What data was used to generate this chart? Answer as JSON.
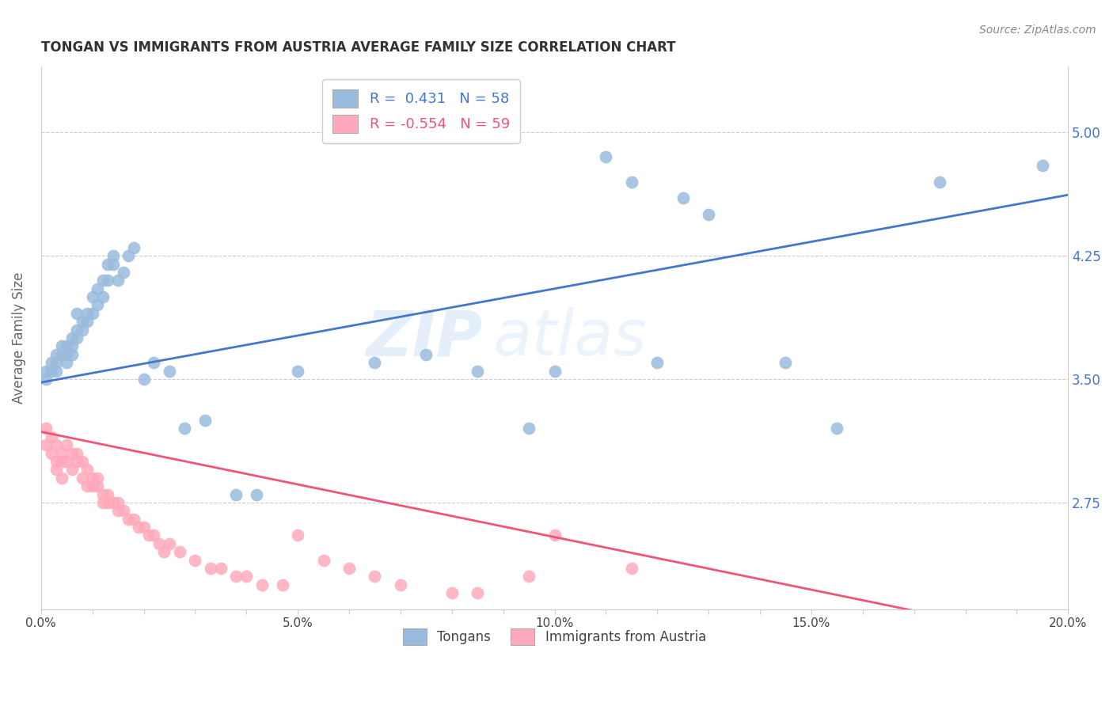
{
  "title": "TONGAN VS IMMIGRANTS FROM AUSTRIA AVERAGE FAMILY SIZE CORRELATION CHART",
  "source": "Source: ZipAtlas.com",
  "ylabel": "Average Family Size",
  "xlim": [
    0.0,
    0.2
  ],
  "ylim": [
    2.1,
    5.4
  ],
  "right_yticks": [
    2.75,
    3.5,
    4.25,
    5.0
  ],
  "xtick_labels": [
    "0.0%",
    "",
    "",
    "",
    "",
    "5.0%",
    "",
    "",
    "",
    "",
    "10.0%",
    "",
    "",
    "",
    "",
    "15.0%",
    "",
    "",
    "",
    "",
    "20.0%"
  ],
  "xtick_values": [
    0.0,
    0.01,
    0.02,
    0.03,
    0.04,
    0.05,
    0.06,
    0.07,
    0.08,
    0.09,
    0.1,
    0.11,
    0.12,
    0.13,
    0.14,
    0.15,
    0.16,
    0.17,
    0.18,
    0.19,
    0.2
  ],
  "blue_color": "#99BBDD",
  "pink_color": "#FFAABB",
  "blue_line_color": "#4477CC",
  "pink_line_color": "#EE5577",
  "legend_blue_r": "0.431",
  "legend_blue_n": "58",
  "legend_pink_r": "-0.554",
  "legend_pink_n": "59",
  "legend_label_blue": "Tongans",
  "legend_label_pink": "Immigrants from Austria",
  "watermark_zip": "ZIP",
  "watermark_atlas": "atlas",
  "blue_scatter_x": [
    0.001,
    0.001,
    0.002,
    0.002,
    0.003,
    0.003,
    0.003,
    0.004,
    0.004,
    0.005,
    0.005,
    0.005,
    0.006,
    0.006,
    0.006,
    0.007,
    0.007,
    0.007,
    0.008,
    0.008,
    0.009,
    0.009,
    0.01,
    0.01,
    0.011,
    0.011,
    0.012,
    0.012,
    0.013,
    0.013,
    0.014,
    0.014,
    0.015,
    0.016,
    0.017,
    0.018,
    0.02,
    0.022,
    0.025,
    0.028,
    0.032,
    0.038,
    0.042,
    0.05,
    0.065,
    0.075,
    0.085,
    0.095,
    0.1,
    0.11,
    0.115,
    0.12,
    0.125,
    0.13,
    0.145,
    0.155,
    0.175,
    0.195
  ],
  "blue_scatter_y": [
    3.5,
    3.55,
    3.55,
    3.6,
    3.55,
    3.65,
    3.6,
    3.7,
    3.65,
    3.6,
    3.65,
    3.7,
    3.7,
    3.65,
    3.75,
    3.8,
    3.75,
    3.9,
    3.8,
    3.85,
    3.85,
    3.9,
    3.9,
    4.0,
    3.95,
    4.05,
    4.0,
    4.1,
    4.1,
    4.2,
    4.2,
    4.25,
    4.1,
    4.15,
    4.25,
    4.3,
    3.5,
    3.6,
    3.55,
    3.2,
    3.25,
    2.8,
    2.8,
    3.55,
    3.6,
    3.65,
    3.55,
    3.2,
    3.55,
    4.85,
    4.7,
    3.6,
    4.6,
    4.5,
    3.6,
    3.2,
    4.7,
    4.8
  ],
  "pink_scatter_x": [
    0.001,
    0.001,
    0.002,
    0.002,
    0.003,
    0.003,
    0.003,
    0.004,
    0.004,
    0.004,
    0.005,
    0.005,
    0.006,
    0.006,
    0.007,
    0.007,
    0.008,
    0.008,
    0.009,
    0.009,
    0.01,
    0.01,
    0.011,
    0.011,
    0.012,
    0.012,
    0.013,
    0.013,
    0.014,
    0.015,
    0.015,
    0.016,
    0.017,
    0.018,
    0.019,
    0.02,
    0.021,
    0.022,
    0.023,
    0.024,
    0.025,
    0.027,
    0.03,
    0.033,
    0.035,
    0.038,
    0.04,
    0.043,
    0.047,
    0.05,
    0.055,
    0.06,
    0.065,
    0.07,
    0.08,
    0.085,
    0.095,
    0.1,
    0.115
  ],
  "pink_scatter_y": [
    3.2,
    3.1,
    3.15,
    3.05,
    3.1,
    3.0,
    2.95,
    3.0,
    3.05,
    2.9,
    3.1,
    3.0,
    3.05,
    2.95,
    3.05,
    3.0,
    3.0,
    2.9,
    2.95,
    2.85,
    2.9,
    2.85,
    2.9,
    2.85,
    2.8,
    2.75,
    2.75,
    2.8,
    2.75,
    2.75,
    2.7,
    2.7,
    2.65,
    2.65,
    2.6,
    2.6,
    2.55,
    2.55,
    2.5,
    2.45,
    2.5,
    2.45,
    2.4,
    2.35,
    2.35,
    2.3,
    2.3,
    2.25,
    2.25,
    2.55,
    2.4,
    2.35,
    2.3,
    2.25,
    2.2,
    2.2,
    2.3,
    2.55,
    2.35
  ],
  "blue_trendline": [
    3.48,
    4.62
  ],
  "pink_trendline": [
    3.18,
    1.9
  ]
}
